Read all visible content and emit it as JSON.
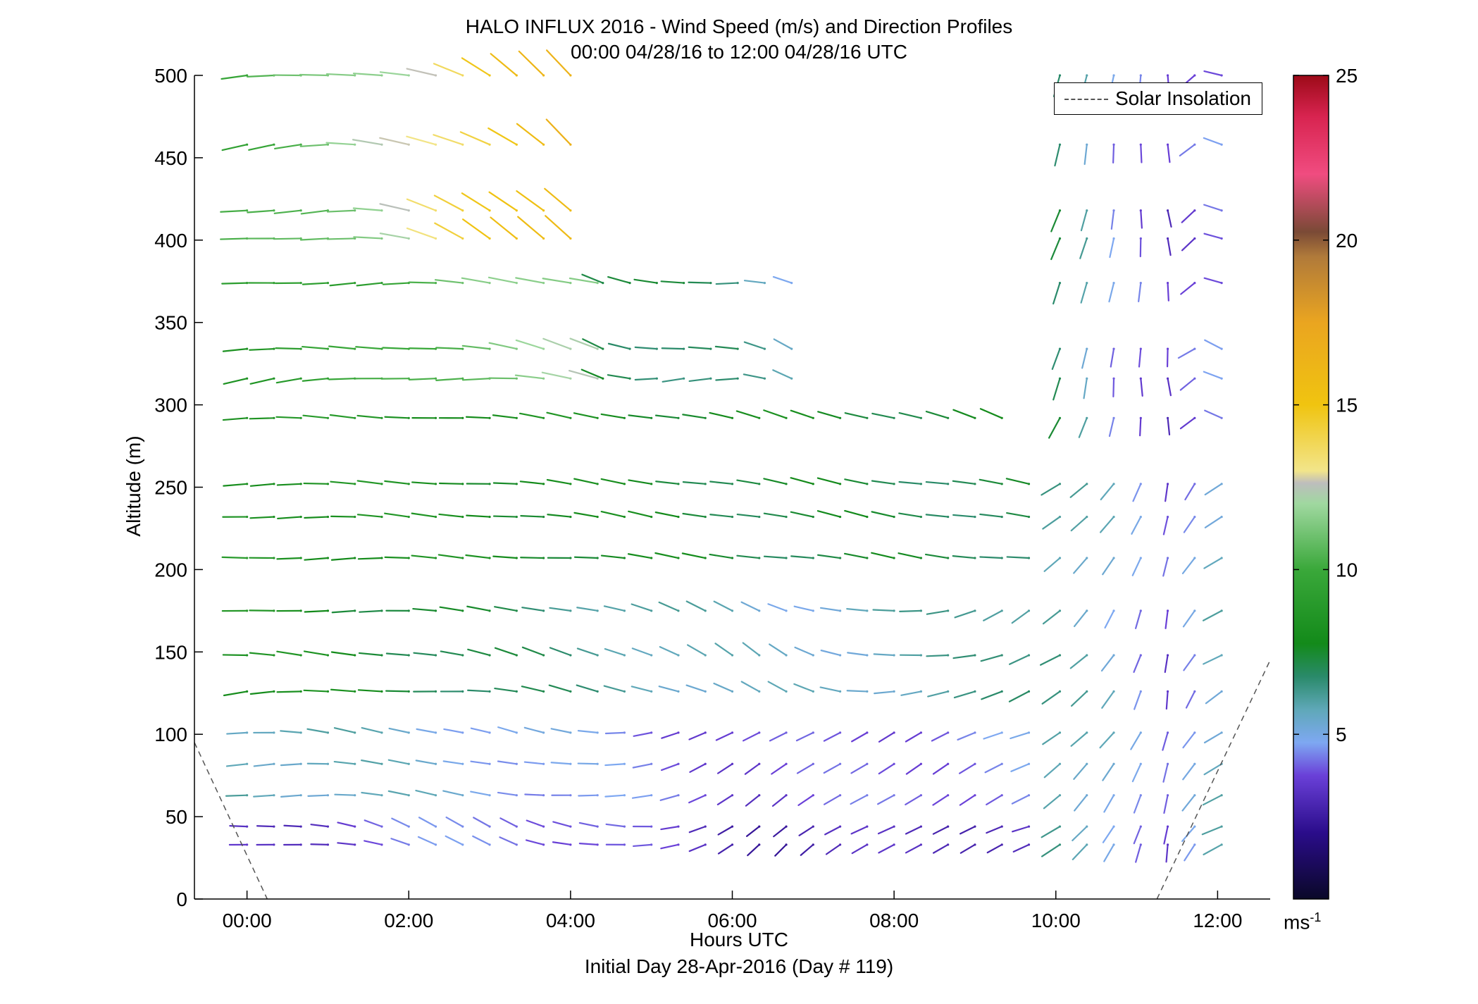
{
  "title": {
    "line1": "HALO INFLUX 2016 - Wind Speed (m/s) and Direction Profiles",
    "line2": "00:00 04/28/16 to 12:00 04/28/16  UTC"
  },
  "xlabel": "Hours UTC",
  "xsublabel": "Initial Day 28-Apr-2016 (Day # 119)",
  "ylabel": "Altitude (m)",
  "legend": {
    "label": "Solar Insolation"
  },
  "colorbar": {
    "unit_base": "ms",
    "unit_exp": "-1",
    "ticks": [
      "5",
      "10",
      "15",
      "20",
      "25"
    ],
    "range": [
      0,
      25
    ]
  },
  "chart_data": {
    "type": "wind-barb-profile",
    "x_ticks": [
      "00:00",
      "02:00",
      "04:00",
      "06:00",
      "08:00",
      "10:00",
      "12:00"
    ],
    "y_ticks": [
      "0",
      "50",
      "100",
      "150",
      "200",
      "250",
      "300",
      "350",
      "400",
      "450",
      "500"
    ],
    "xlim_hours": [
      -0.65,
      12.65
    ],
    "ylim": [
      0,
      500
    ],
    "altitudes": [
      500,
      458,
      418,
      401,
      374,
      334,
      316,
      292,
      252,
      232,
      207,
      175,
      148,
      126,
      101,
      82,
      63,
      44,
      33
    ],
    "solar_insolation": [
      {
        "hour": -0.65,
        "altitude": 95
      },
      {
        "hour": 0.25,
        "altitude": 0
      },
      {
        "hour": 11.25,
        "altitude": 0
      },
      {
        "hour": 12.65,
        "altitude": 145
      }
    ],
    "segments": [
      {
        "from": 0.0,
        "to": 4.2,
        "altitudes": [
          500,
          458,
          418,
          401
        ],
        "speed": [
          9.8,
          11,
          12.5,
          15,
          16.5
        ],
        "dir": [
          265,
          270,
          285,
          305,
          320
        ]
      },
      {
        "from": 0.0,
        "to": 4.4,
        "altitudes": [
          374,
          334,
          316
        ],
        "speed": [
          8.8,
          9.5,
          11,
          12
        ],
        "dir": [
          265,
          268,
          275,
          285
        ]
      },
      {
        "from": 4.4,
        "to": 6.9,
        "altitudes": [
          374,
          334,
          316
        ],
        "speed": [
          7.5,
          7,
          6.6,
          5
        ],
        "dir": [
          295,
          270,
          268,
          300
        ]
      },
      {
        "from": 0.0,
        "to": 9.5,
        "altitudes": [
          292
        ],
        "speed": [
          8.8,
          8.2,
          7.8,
          7.4
        ],
        "dir": [
          266,
          272,
          280,
          285
        ]
      },
      {
        "from": 0.0,
        "to": 9.75,
        "altitudes": [
          252,
          232,
          207
        ],
        "speed": [
          8.5,
          8,
          7.4,
          7.2
        ],
        "dir": [
          268,
          275,
          280,
          278
        ]
      },
      {
        "from": 0.0,
        "to": 9.75,
        "altitudes": [
          175,
          148,
          126
        ],
        "speed": [
          8.4,
          7,
          5.2,
          6.5
        ],
        "dir": [
          268,
          280,
          300,
          240
        ]
      },
      {
        "from": 0.0,
        "to": 9.75,
        "altitudes": [
          101,
          82,
          63
        ],
        "speed": [
          6,
          5,
          3.6,
          4.5
        ],
        "dir": [
          268,
          285,
          235,
          245
        ]
      },
      {
        "from": 0.0,
        "to": 9.75,
        "altitudes": [
          44,
          33
        ],
        "speed": [
          3.2,
          4.6,
          2.7,
          3.4
        ],
        "dir": [
          268,
          300,
          230,
          250
        ]
      },
      {
        "from": 10.05,
        "to": 12.05,
        "altitudes": [
          500,
          458,
          418,
          401,
          374,
          334,
          316,
          292
        ],
        "speed": [
          7,
          4.5,
          3.5,
          4.3
        ],
        "dir": [
          200,
          190,
          175,
          290
        ]
      },
      {
        "from": 10.05,
        "to": 12.05,
        "altitudes": [
          252,
          232,
          207,
          175,
          148,
          126,
          101,
          82,
          63,
          44,
          33
        ],
        "speed": [
          6.2,
          5.3,
          3.8,
          5.6
        ],
        "dir": [
          235,
          215,
          190,
          240
        ]
      }
    ]
  }
}
